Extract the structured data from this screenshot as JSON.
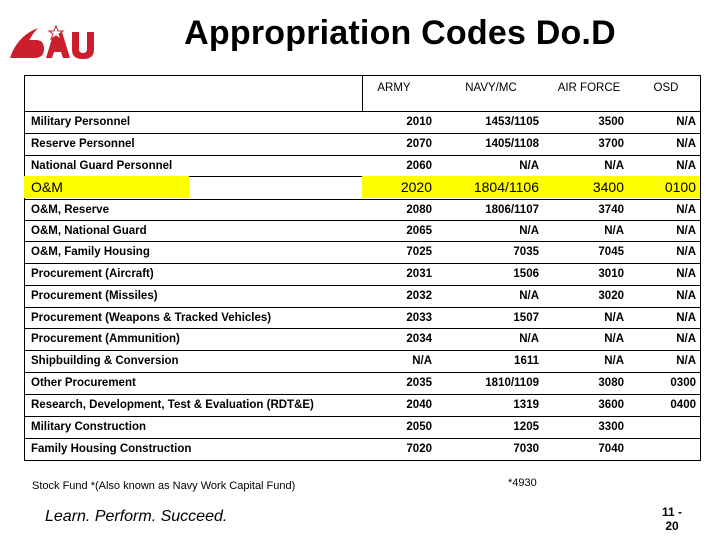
{
  "header": {
    "title": "Appropriation Codes Do.D",
    "logo_text": "DAU",
    "brand_color": "#cc1f2d"
  },
  "table": {
    "columns": [
      "ARMY",
      "NAVY/MC",
      "AIR FORCE",
      "OSD"
    ],
    "rows": [
      {
        "label": "Military Personnel",
        "army": "2010",
        "navy": "1453/1105",
        "af": "3500",
        "osd": "N/A"
      },
      {
        "label": "Reserve Personnel",
        "army": "2070",
        "navy": "1405/1108",
        "af": "3700",
        "osd": "N/A"
      },
      {
        "label": "National Guard Personnel",
        "army": "2060",
        "navy": "N/A",
        "af": "N/A",
        "osd": "N/A"
      },
      {
        "label": "O&M",
        "army": "2020",
        "navy": "1804/1106",
        "af": "3400",
        "osd": "0100",
        "highlight": true
      },
      {
        "label": "O&M, Reserve",
        "army": "2080",
        "navy": "1806/1107",
        "af": "3740",
        "osd": "N/A"
      },
      {
        "label": "O&M, National Guard",
        "army": "2065",
        "navy": "N/A",
        "af": "N/A",
        "osd": "N/A"
      },
      {
        "label": "O&M, Family Housing",
        "army": "7025",
        "navy": "7035",
        "af": "7045",
        "osd": "N/A"
      },
      {
        "label": "Procurement (Aircraft)",
        "army": "2031",
        "navy": "1506",
        "af": "3010",
        "osd": "N/A"
      },
      {
        "label": "Procurement (Missiles)",
        "army": "2032",
        "navy": "N/A",
        "af": "3020",
        "osd": "N/A"
      },
      {
        "label": "Procurement (Weapons & Tracked Vehicles)",
        "army": "2033",
        "navy": "1507",
        "af": "N/A",
        "osd": "N/A"
      },
      {
        "label": "Procurement (Ammunition)",
        "army": "2034",
        "navy": "N/A",
        "af": "N/A",
        "osd": "N/A"
      },
      {
        "label": "Shipbuilding & Conversion",
        "army": "N/A",
        "navy": "1611",
        "af": "N/A",
        "osd": "N/A"
      },
      {
        "label": "Other Procurement",
        "army": "2035",
        "navy": "1810/1109",
        "af": "3080",
        "osd": "0300"
      },
      {
        "label": "Research, Development, Test & Evaluation (RDT&E)",
        "army": "2040",
        "navy": "1319",
        "af": "3600",
        "osd": "0400"
      },
      {
        "label": "Military Construction",
        "army": "2050",
        "navy": "1205",
        "af": "3300",
        "osd": ""
      },
      {
        "label": "Family Housing Construction",
        "army": "7020",
        "navy": "7030",
        "af": "7040",
        "osd": ""
      }
    ],
    "stock_fund": {
      "label": "Stock Fund *(Also known as Navy Work Capital Fund)",
      "navy": "*4930"
    }
  },
  "footer": {
    "tagline": "Learn. Perform. Succeed.",
    "page_line1": "11 -",
    "page_line2": "20"
  }
}
